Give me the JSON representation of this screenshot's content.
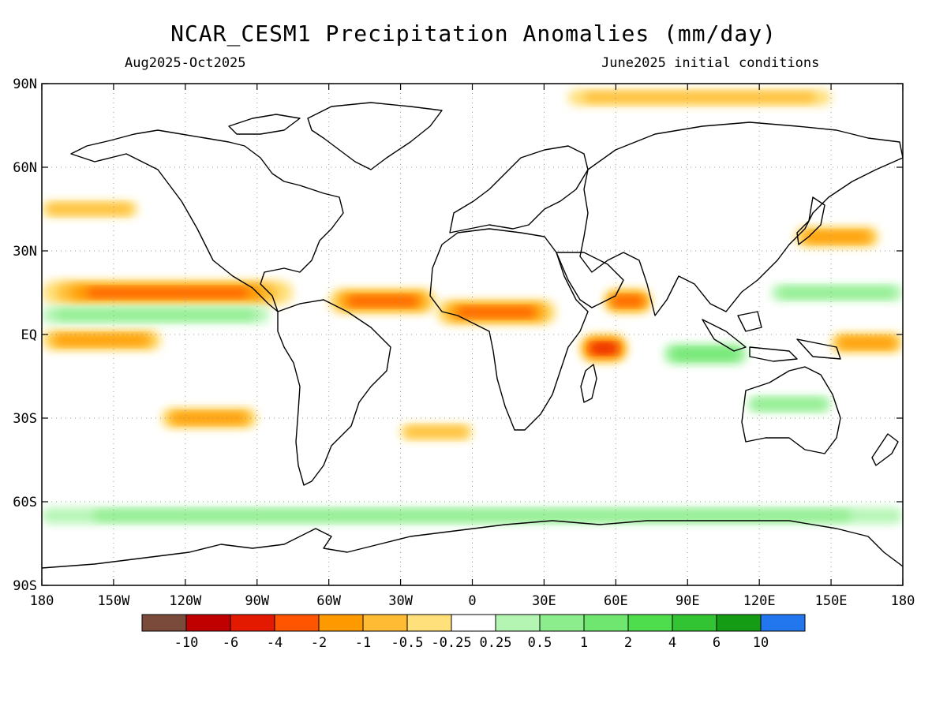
{
  "title": "NCAR_CESM1 Precipitation Anomalies (mm/day)",
  "subtitle_left": "Aug2025-Oct2025",
  "subtitle_right": "June2025 initial conditions",
  "axes": {
    "lat_labels": [
      "90N",
      "60N",
      "30N",
      "EQ",
      "30S",
      "60S",
      "90S"
    ],
    "lon_labels": [
      "180",
      "150W",
      "120W",
      "90W",
      "60W",
      "30W",
      "0",
      "30E",
      "60E",
      "90E",
      "120E",
      "150E",
      "180"
    ]
  },
  "colorbar": {
    "labels": [
      "-10",
      "-6",
      "-4",
      "-2",
      "-1",
      "-0.5",
      "-0.25",
      "0.25",
      "0.5",
      "1",
      "2",
      "4",
      "6",
      "10"
    ],
    "colors": [
      "#7a4a3a",
      "#c00000",
      "#e31a00",
      "#ff5500",
      "#ff9900",
      "#ffbb33",
      "#ffe07a",
      "#ffffff",
      "#b4f5b4",
      "#8ced8c",
      "#6fe66f",
      "#4ddd4d",
      "#33c433",
      "#159c15",
      "#2277ee"
    ]
  },
  "regions": [
    {
      "type": "dry",
      "level": 4,
      "name": "tropical-east-pacific-north",
      "lat": 15,
      "lon_w": -180,
      "lon_e": -75
    },
    {
      "type": "dry",
      "level": 3,
      "name": "equatorial-pacific",
      "lat": -2,
      "lon_w": -180,
      "lon_e": -130
    },
    {
      "type": "wet",
      "level": 2,
      "name": "itcz-pacific",
      "lat": 7,
      "lon_w": -180,
      "lon_e": -85
    },
    {
      "type": "dry",
      "level": 4,
      "name": "tropical-atlantic",
      "lat": 12,
      "lon_w": -60,
      "lon_e": -15
    },
    {
      "type": "dry",
      "level": 4,
      "name": "sahel-africa",
      "lat": 8,
      "lon_w": -15,
      "lon_e": 35
    },
    {
      "type": "dry",
      "level": 5,
      "name": "western-indian-ocean",
      "lat": -5,
      "lon_w": 45,
      "lon_e": 65
    },
    {
      "type": "dry",
      "level": 4,
      "name": "arabian-sea",
      "lat": 12,
      "lon_w": 55,
      "lon_e": 75
    },
    {
      "type": "wet",
      "level": 3,
      "name": "eastern-indian-ocean",
      "lat": -7,
      "lon_w": 80,
      "lon_e": 115
    },
    {
      "type": "wet",
      "level": 2,
      "name": "west-pacific",
      "lat": 15,
      "lon_w": 125,
      "lon_e": 180
    },
    {
      "type": "dry",
      "level": 3,
      "name": "central-pacific-south",
      "lat": -3,
      "lon_w": 150,
      "lon_e": 180
    },
    {
      "type": "wet",
      "level": 2,
      "name": "australia",
      "lat": -25,
      "lon_w": 115,
      "lon_e": 150
    },
    {
      "type": "wet",
      "level": 2,
      "name": "southern-ocean-belt",
      "lat": -65,
      "lon_w": -180,
      "lon_e": 180
    },
    {
      "type": "dry",
      "level": 3,
      "name": "south-pacific-diagonal",
      "lat": -30,
      "lon_w": -130,
      "lon_e": -90
    },
    {
      "type": "dry",
      "level": 2,
      "name": "south-atlantic",
      "lat": -35,
      "lon_w": -30,
      "lon_e": 0
    },
    {
      "type": "dry",
      "level": 2,
      "name": "north-pacific-subpolar",
      "lat": 45,
      "lon_w": -180,
      "lon_e": -140
    },
    {
      "type": "dry",
      "level": 2,
      "name": "arctic-fringe",
      "lat": 85,
      "lon_w": 40,
      "lon_e": 150
    },
    {
      "type": "dry",
      "level": 3,
      "name": "northwest-pacific",
      "lat": 35,
      "lon_w": 135,
      "lon_e": 170
    }
  ]
}
